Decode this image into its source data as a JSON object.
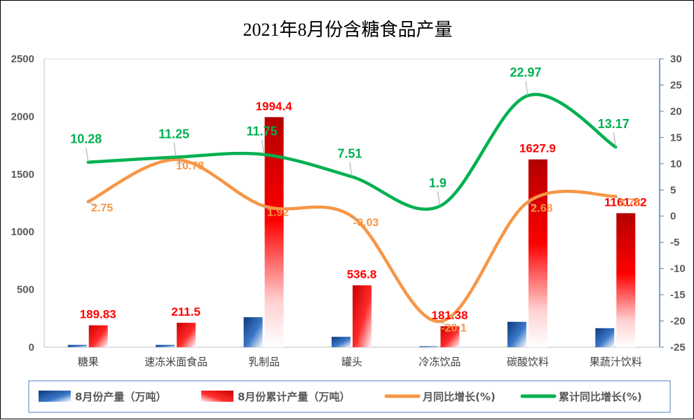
{
  "chart_data": {
    "type": "bar",
    "title": "2021年8月份含糖食品产量",
    "categories": [
      "糖果",
      "速冻米面食品",
      "乳制品",
      "罐头",
      "冷冻饮品",
      "碳酸饮料",
      "果蔬汁饮料"
    ],
    "y_left": {
      "ylim": [
        0,
        2500
      ],
      "ticks": [
        "0",
        "500",
        "1000",
        "1500",
        "2000",
        "2500"
      ]
    },
    "y_right": {
      "ylim": [
        -25,
        30
      ],
      "ticks": [
        "-25",
        "-20",
        "-15",
        "-10",
        "-5",
        "0",
        "5",
        "10",
        "15",
        "20",
        "25",
        "30"
      ]
    },
    "series": [
      {
        "name": "8月份产量（万吨）",
        "type": "bar",
        "axis": "left",
        "color": "#1f5fa8",
        "values": [
          20,
          20,
          260,
          90,
          8,
          220,
          165
        ]
      },
      {
        "name": "8月份累计产量（万吨）",
        "type": "bar",
        "axis": "left",
        "color": "#e60000",
        "values": [
          189.83,
          211.5,
          1994.4,
          536.8,
          181.38,
          1627.9,
          1161.82
        ],
        "labels": [
          "189.83",
          "211.5",
          "1994.4",
          "536.8",
          "181.38",
          "1627.9",
          "1161.82"
        ]
      },
      {
        "name": "月同比增长(%)",
        "type": "line",
        "axis": "right",
        "color": "#f79646",
        "values": [
          2.75,
          10.78,
          1.92,
          -0.03,
          -20.1,
          2.68,
          3.78
        ],
        "labels": [
          "2.75",
          "10.78",
          "1.92",
          "-0.03",
          "-20.1",
          "2.68",
          "3.78"
        ]
      },
      {
        "name": "累计同比增长(%)",
        "type": "line",
        "axis": "right",
        "color": "#00b050",
        "values": [
          10.28,
          11.25,
          11.75,
          7.51,
          1.9,
          22.97,
          13.17
        ],
        "labels": [
          "10.28",
          "11.25",
          "11.75",
          "7.51",
          "1.9",
          "22.97",
          "13.17"
        ]
      }
    ],
    "legend": {
      "position": "bottom"
    }
  }
}
